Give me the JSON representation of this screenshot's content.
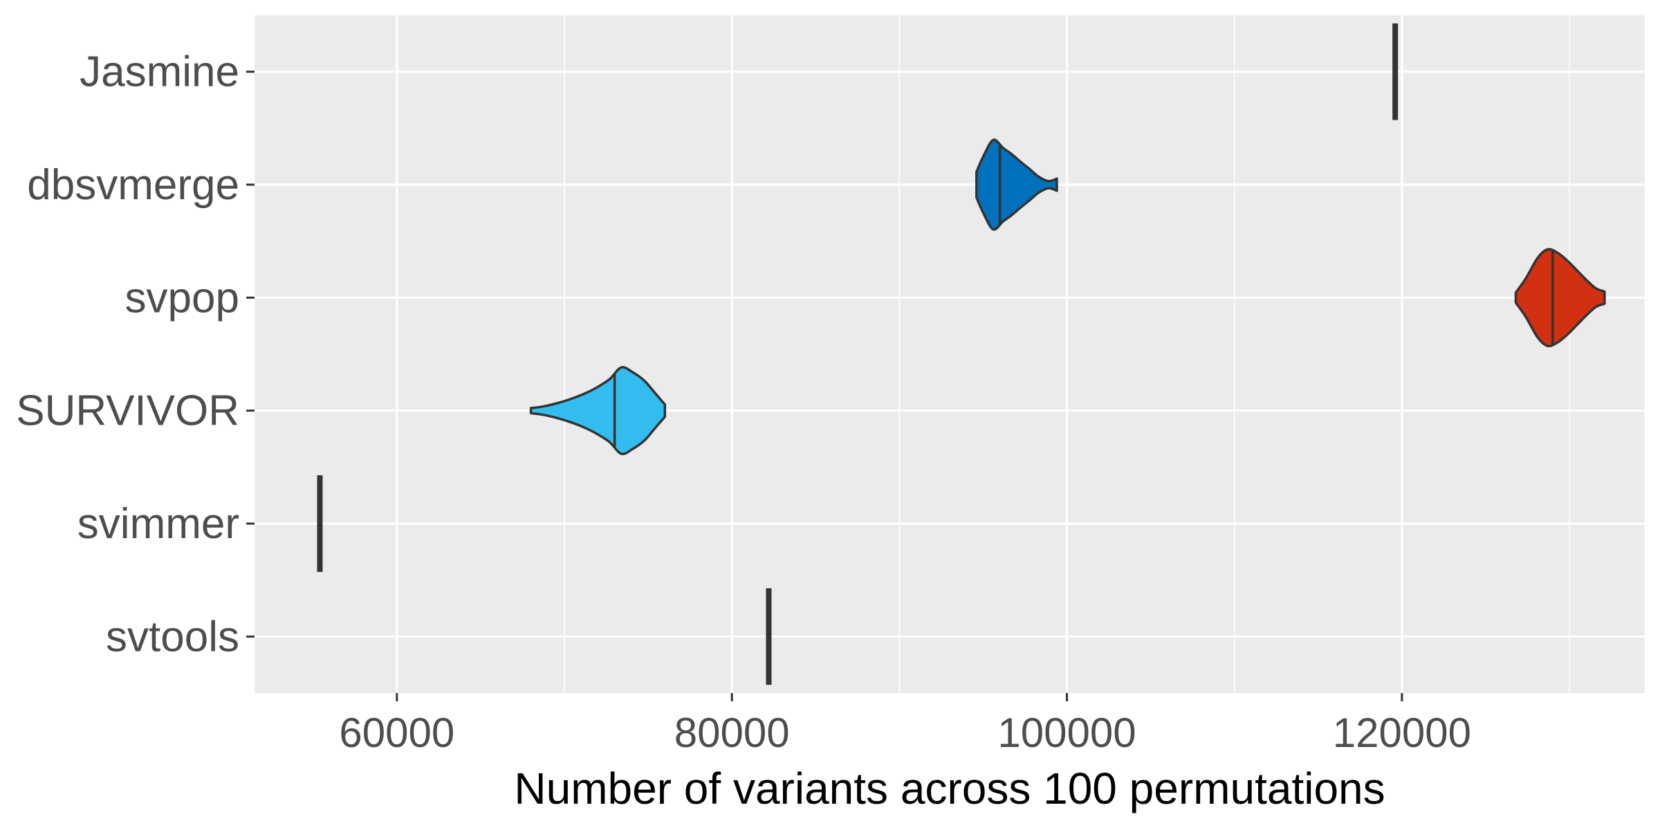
{
  "chart_data": {
    "type": "violin",
    "orientation": "horizontal",
    "title": "",
    "xlabel": "Number of variants across 100 permutations",
    "ylabel": "",
    "xlim": [
      51500,
      134500
    ],
    "x_ticks": [
      60000,
      80000,
      100000,
      120000
    ],
    "x_tick_labels": [
      "60000",
      "80000",
      "100000",
      "120000"
    ],
    "grid": true,
    "panel_background": "#EBEBEB",
    "legend": "none",
    "categories": [
      "Jasmine",
      "dbsvmerge",
      "svpop",
      "SURVIVOR",
      "svimmer",
      "svtools"
    ],
    "series": [
      {
        "category": "Jasmine",
        "fill": "#333333",
        "median": 119600,
        "profile": [
          [
            119600,
            0.03
          ],
          [
            119600,
            0.03
          ]
        ]
      },
      {
        "category": "dbsvmerge",
        "fill": "#0072BD",
        "median": 96000,
        "profile": [
          [
            94600,
            0.25
          ],
          [
            95000,
            0.55
          ],
          [
            95600,
            0.88
          ],
          [
            96200,
            0.72
          ],
          [
            96700,
            0.6
          ],
          [
            97200,
            0.46
          ],
          [
            97800,
            0.3
          ],
          [
            98300,
            0.16
          ],
          [
            98900,
            0.07
          ],
          [
            99400,
            0.12
          ]
        ]
      },
      {
        "category": "svpop",
        "fill": "#D13111",
        "median": 129000,
        "profile": [
          [
            126800,
            0.1
          ],
          [
            127400,
            0.38
          ],
          [
            128100,
            0.78
          ],
          [
            128700,
            0.95
          ],
          [
            129300,
            0.88
          ],
          [
            129900,
            0.72
          ],
          [
            130500,
            0.52
          ],
          [
            131100,
            0.32
          ],
          [
            131600,
            0.18
          ],
          [
            132100,
            0.12
          ]
        ]
      },
      {
        "category": "SURVIVOR",
        "fill": "#33BDEF",
        "median": 73000,
        "profile": [
          [
            68000,
            0.05
          ],
          [
            68700,
            0.08
          ],
          [
            69500,
            0.14
          ],
          [
            70300,
            0.22
          ],
          [
            71100,
            0.32
          ],
          [
            71900,
            0.45
          ],
          [
            72700,
            0.62
          ],
          [
            73400,
            0.85
          ],
          [
            74100,
            0.75
          ],
          [
            74800,
            0.58
          ],
          [
            75400,
            0.35
          ],
          [
            76000,
            0.12
          ]
        ]
      },
      {
        "category": "svimmer",
        "fill": "#333333",
        "median": 55400,
        "profile": [
          [
            55400,
            0.03
          ],
          [
            55400,
            0.03
          ]
        ]
      },
      {
        "category": "svtools",
        "fill": "#333333",
        "median": 82200,
        "profile": [
          [
            82200,
            0.03
          ],
          [
            82200,
            0.03
          ]
        ]
      }
    ]
  }
}
